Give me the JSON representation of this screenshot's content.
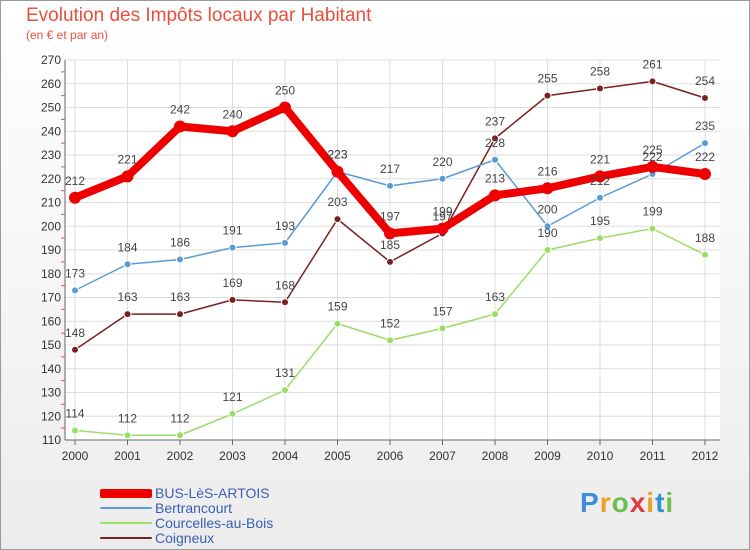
{
  "header": {
    "title": "Evolution des Impôts locaux par Habitant",
    "subtitle": "(en € et par an)"
  },
  "chart_data": {
    "type": "line",
    "title": "Evolution des Impôts locaux par Habitant",
    "subtitle": "(en € et par an)",
    "xlabel": "",
    "ylabel": "",
    "x": [
      "2000",
      "2001",
      "2002",
      "2003",
      "2004",
      "2005",
      "2006",
      "2007",
      "2008",
      "2009",
      "2010",
      "2011",
      "2012"
    ],
    "ylim": [
      110,
      270
    ],
    "yticks": [
      110,
      120,
      130,
      140,
      150,
      160,
      170,
      180,
      190,
      200,
      210,
      220,
      230,
      240,
      250,
      260,
      270
    ],
    "grid": true,
    "legend_position": "bottom-left",
    "series": [
      {
        "name": "BUS-LèS-ARTOIS",
        "color": "#ee0000",
        "values": [
          212,
          221,
          242,
          240,
          250,
          223,
          197,
          199,
          213,
          216,
          221,
          225,
          222
        ]
      },
      {
        "name": "Bertrancourt",
        "color": "#5b9bd5",
        "values": [
          173,
          184,
          186,
          191,
          193,
          223,
          217,
          220,
          228,
          200,
          212,
          222,
          235
        ]
      },
      {
        "name": "Courcelles-au-Bois",
        "color": "#99dd66",
        "values": [
          114,
          112,
          112,
          121,
          131,
          159,
          152,
          157,
          163,
          190,
          195,
          199,
          188
        ]
      },
      {
        "name": "Coigneux",
        "color": "#7b2020",
        "values": [
          148,
          163,
          163,
          169,
          168,
          203,
          185,
          197,
          237,
          255,
          258,
          261,
          254
        ]
      }
    ]
  },
  "logo": {
    "letters": [
      "P",
      "r",
      "o",
      "x",
      "i",
      "t",
      "i"
    ],
    "colors": [
      "#3a8fd8",
      "#f0a020",
      "#6cc04a",
      "#e03c3c",
      "#f0a020",
      "#3a8fd8",
      "#6cc04a"
    ]
  }
}
